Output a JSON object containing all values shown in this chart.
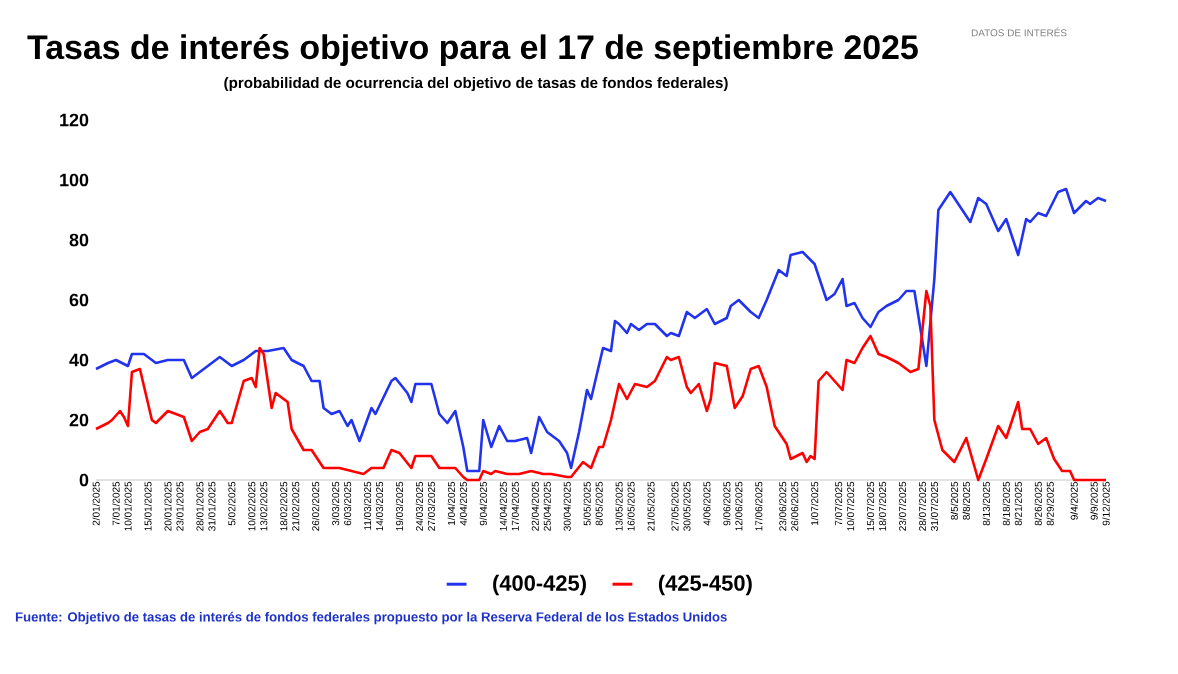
{
  "chart_data": {
    "type": "line",
    "title": "Tasas de interés objetivo para el 17 de septiembre 2025",
    "subtitle": "(probabilidad de ocurrencia del objetivo de tasas de fondos federales)",
    "annotations": [
      "DATOS DE INTERÉS",
      "Fuente: Objetivo de tasas de interés de fondos federales propuesto por la Reserva Federal de los Estados Unidos"
    ],
    "xlim": [
      "2025-01-02",
      "2025-09-12"
    ],
    "xticks": [
      {
        "value": "2025-01-02",
        "label": "2/01/2025"
      },
      {
        "value": "2025-01-07",
        "label": "7/01/2025"
      },
      {
        "value": "2025-01-10",
        "label": "10/01/2025"
      },
      {
        "value": "2025-01-15",
        "label": "15/01/2025"
      },
      {
        "value": "2025-01-20",
        "label": "20/01/2025"
      },
      {
        "value": "2025-01-23",
        "label": "23/01/2025"
      },
      {
        "value": "2025-01-28",
        "label": "28/01/2025"
      },
      {
        "value": "2025-01-31",
        "label": "31/01/2025"
      },
      {
        "value": "2025-02-05",
        "label": "5/02/2025"
      },
      {
        "value": "2025-02-10",
        "label": "10/02/2025"
      },
      {
        "value": "2025-02-13",
        "label": "13/02/2025"
      },
      {
        "value": "2025-02-18",
        "label": "18/02/2025"
      },
      {
        "value": "2025-02-21",
        "label": "21/02/2025"
      },
      {
        "value": "2025-02-26",
        "label": "26/02/2025"
      },
      {
        "value": "2025-03-03",
        "label": "3/03/2025"
      },
      {
        "value": "2025-03-06",
        "label": "6/03/2025"
      },
      {
        "value": "2025-03-11",
        "label": "11/03/2025"
      },
      {
        "value": "2025-03-14",
        "label": "14/03/2025"
      },
      {
        "value": "2025-03-19",
        "label": "19/03/2025"
      },
      {
        "value": "2025-03-24",
        "label": "24/03/2025"
      },
      {
        "value": "2025-03-27",
        "label": "27/03/2025"
      },
      {
        "value": "2025-04-01",
        "label": "1/04/2025"
      },
      {
        "value": "2025-04-04",
        "label": "4/04/2025"
      },
      {
        "value": "2025-04-09",
        "label": "9/04/2025"
      },
      {
        "value": "2025-04-14",
        "label": "14/04/2025"
      },
      {
        "value": "2025-04-17",
        "label": "17/04/2025"
      },
      {
        "value": "2025-04-22",
        "label": "22/04/2025"
      },
      {
        "value": "2025-04-25",
        "label": "25/04/2025"
      },
      {
        "value": "2025-04-30",
        "label": "30/04/2025"
      },
      {
        "value": "2025-05-05",
        "label": "5/05/2025"
      },
      {
        "value": "2025-05-08",
        "label": "8/05/2025"
      },
      {
        "value": "2025-05-13",
        "label": "13/05/2025"
      },
      {
        "value": "2025-05-16",
        "label": "16/05/2025"
      },
      {
        "value": "2025-05-21",
        "label": "21/05/2025"
      },
      {
        "value": "2025-05-27",
        "label": "27/05/2025"
      },
      {
        "value": "2025-05-30",
        "label": "30/05/2025"
      },
      {
        "value": "2025-06-04",
        "label": "4/06/2025"
      },
      {
        "value": "2025-06-09",
        "label": "9/06/2025"
      },
      {
        "value": "2025-06-12",
        "label": "12/06/2025"
      },
      {
        "value": "2025-06-17",
        "label": "17/06/2025"
      },
      {
        "value": "2025-06-23",
        "label": "23/06/2025"
      },
      {
        "value": "2025-06-26",
        "label": "26/06/2025"
      },
      {
        "value": "2025-07-01",
        "label": "1/07/2025"
      },
      {
        "value": "2025-07-07",
        "label": "7/07/2025"
      },
      {
        "value": "2025-07-10",
        "label": "10/07/2025"
      },
      {
        "value": "2025-07-15",
        "label": "15/07/2025"
      },
      {
        "value": "2025-07-18",
        "label": "18/07/2025"
      },
      {
        "value": "2025-07-23",
        "label": "23/07/2025"
      },
      {
        "value": "2025-07-28",
        "label": "28/07/2025"
      },
      {
        "value": "2025-07-31",
        "label": "31/07/2025"
      },
      {
        "value": "2025-08-05",
        "label": "8/5/2025"
      },
      {
        "value": "2025-08-08",
        "label": "8/8/2025"
      },
      {
        "value": "2025-08-13",
        "label": "8/13/2025"
      },
      {
        "value": "2025-08-18",
        "label": "8/18/2025"
      },
      {
        "value": "2025-08-21",
        "label": "8/21/2025"
      },
      {
        "value": "2025-08-26",
        "label": "8/26/2025"
      },
      {
        "value": "2025-08-29",
        "label": "8/29/2025"
      },
      {
        "value": "2025-09-04",
        "label": "9/4/2025"
      },
      {
        "value": "2025-09-09",
        "label": "9/9/2025"
      },
      {
        "value": "2025-09-12",
        "label": "9/12/2025"
      }
    ],
    "ylim": [
      0,
      120
    ],
    "yticks": [
      0,
      20,
      40,
      60,
      80,
      100,
      120
    ],
    "grid": false,
    "legend": "bottom",
    "line_style": "solid",
    "series": [
      {
        "name": "(400-425)",
        "color": "#2233ee",
        "x": [
          "2025-01-02",
          "2025-01-05",
          "2025-01-07",
          "2025-01-10",
          "2025-01-11",
          "2025-01-14",
          "2025-01-17",
          "2025-01-20",
          "2025-01-24",
          "2025-01-26",
          "2025-01-30",
          "2025-02-02",
          "2025-02-05",
          "2025-02-08",
          "2025-02-11",
          "2025-02-14",
          "2025-02-18",
          "2025-02-20",
          "2025-02-23",
          "2025-02-25",
          "2025-02-27",
          "2025-02-28",
          "2025-03-02",
          "2025-03-04",
          "2025-03-06",
          "2025-03-07",
          "2025-03-09",
          "2025-03-12",
          "2025-03-13",
          "2025-03-17",
          "2025-03-18",
          "2025-03-21",
          "2025-03-22",
          "2025-03-23",
          "2025-03-27",
          "2025-03-29",
          "2025-03-31",
          "2025-04-02",
          "2025-04-04",
          "2025-04-05",
          "2025-04-08",
          "2025-04-09",
          "2025-04-11",
          "2025-04-13",
          "2025-04-15",
          "2025-04-17",
          "2025-04-20",
          "2025-04-21",
          "2025-04-23",
          "2025-04-25",
          "2025-04-28",
          "2025-04-30",
          "2025-05-01",
          "2025-05-03",
          "2025-05-05",
          "2025-05-06",
          "2025-05-09",
          "2025-05-11",
          "2025-05-12",
          "2025-05-13",
          "2025-05-15",
          "2025-05-16",
          "2025-05-18",
          "2025-05-20",
          "2025-05-22",
          "2025-05-25",
          "2025-05-26",
          "2025-05-28",
          "2025-05-30",
          "2025-06-01",
          "2025-06-04",
          "2025-06-06",
          "2025-06-09",
          "2025-06-10",
          "2025-06-12",
          "2025-06-15",
          "2025-06-17",
          "2025-06-19",
          "2025-06-22",
          "2025-06-24",
          "2025-06-25",
          "2025-06-28",
          "2025-07-01",
          "2025-07-03",
          "2025-07-04",
          "2025-07-06",
          "2025-07-08",
          "2025-07-09",
          "2025-07-11",
          "2025-07-13",
          "2025-07-15",
          "2025-07-17",
          "2025-07-19",
          "2025-07-22",
          "2025-07-24",
          "2025-07-26",
          "2025-07-29",
          "2025-07-31",
          "2025-08-01",
          "2025-08-04",
          "2025-08-07",
          "2025-08-09",
          "2025-08-11",
          "2025-08-13",
          "2025-08-16",
          "2025-08-18",
          "2025-08-19",
          "2025-08-21",
          "2025-08-23",
          "2025-08-24",
          "2025-08-26",
          "2025-08-28",
          "2025-08-31",
          "2025-09-02",
          "2025-09-04",
          "2025-09-07",
          "2025-09-08",
          "2025-09-10",
          "2025-09-12"
        ],
        "values": [
          37,
          39,
          40,
          38,
          42,
          42,
          39,
          40,
          40,
          34,
          38,
          41,
          38,
          40,
          43,
          43,
          44,
          40,
          38,
          33,
          33,
          24,
          22,
          23,
          18,
          20,
          13,
          24,
          22,
          33,
          34,
          29,
          26,
          32,
          32,
          22,
          19,
          23,
          11,
          3,
          3,
          20,
          11,
          18,
          13,
          13,
          14,
          9,
          21,
          16,
          13,
          9,
          4,
          16,
          30,
          27,
          44,
          43,
          53,
          52,
          49,
          52,
          50,
          52,
          52,
          48,
          49,
          48,
          56,
          54,
          57,
          52,
          54,
          58,
          60,
          56,
          54,
          60,
          70,
          68,
          75,
          76,
          72,
          64,
          60,
          62,
          67,
          58,
          59,
          54,
          51,
          56,
          58,
          60,
          63,
          63,
          38,
          67,
          90,
          96,
          90,
          86,
          94,
          92,
          83,
          87,
          83,
          75,
          87,
          86,
          89,
          88,
          96,
          97,
          89,
          93,
          92,
          94,
          93
        ]
      },
      {
        "name": "(425-450)",
        "color": "#ff0000",
        "x": [
          "2025-01-02",
          "2025-01-05",
          "2025-01-06",
          "2025-01-08",
          "2025-01-09",
          "2025-01-10",
          "2025-01-11",
          "2025-01-13",
          "2025-01-16",
          "2025-01-17",
          "2025-01-20",
          "2025-01-24",
          "2025-01-26",
          "2025-01-28",
          "2025-01-30",
          "2025-02-02",
          "2025-02-04",
          "2025-02-05",
          "2025-02-08",
          "2025-02-10",
          "2025-02-11",
          "2025-02-12",
          "2025-02-13",
          "2025-02-15",
          "2025-02-16",
          "2025-02-19",
          "2025-02-20",
          "2025-02-23",
          "2025-02-25",
          "2025-02-28",
          "2025-03-04",
          "2025-03-07",
          "2025-03-10",
          "2025-03-12",
          "2025-03-15",
          "2025-03-17",
          "2025-03-19",
          "2025-03-22",
          "2025-03-23",
          "2025-03-27",
          "2025-03-29",
          "2025-04-02",
          "2025-04-04",
          "2025-04-05",
          "2025-04-08",
          "2025-04-09",
          "2025-04-11",
          "2025-04-12",
          "2025-04-15",
          "2025-04-18",
          "2025-04-21",
          "2025-04-24",
          "2025-04-26",
          "2025-04-30",
          "2025-05-01",
          "2025-05-04",
          "2025-05-06",
          "2025-05-08",
          "2025-05-09",
          "2025-05-11",
          "2025-05-13",
          "2025-05-15",
          "2025-05-17",
          "2025-05-20",
          "2025-05-22",
          "2025-05-25",
          "2025-05-26",
          "2025-05-28",
          "2025-05-30",
          "2025-05-31",
          "2025-06-02",
          "2025-06-04",
          "2025-06-05",
          "2025-06-06",
          "2025-06-09",
          "2025-06-11",
          "2025-06-13",
          "2025-06-15",
          "2025-06-17",
          "2025-06-19",
          "2025-06-21",
          "2025-06-24",
          "2025-06-25",
          "2025-06-28",
          "2025-06-29",
          "2025-06-30",
          "2025-07-01",
          "2025-07-02",
          "2025-07-04",
          "2025-07-06",
          "2025-07-08",
          "2025-07-09",
          "2025-07-11",
          "2025-07-13",
          "2025-07-15",
          "2025-07-17",
          "2025-07-19",
          "2025-07-22",
          "2025-07-24",
          "2025-07-25",
          "2025-07-27",
          "2025-07-29",
          "2025-07-30",
          "2025-07-31",
          "2025-08-02",
          "2025-08-05",
          "2025-08-08",
          "2025-08-11",
          "2025-08-13",
          "2025-08-16",
          "2025-08-18",
          "2025-08-21",
          "2025-08-22",
          "2025-08-24",
          "2025-08-26",
          "2025-08-28",
          "2025-08-30",
          "2025-09-01",
          "2025-09-03",
          "2025-09-04",
          "2025-09-12"
        ],
        "values": [
          17,
          19,
          20,
          23,
          21,
          18,
          36,
          37,
          20,
          19,
          23,
          21,
          13,
          16,
          17,
          23,
          19,
          19,
          33,
          34,
          31,
          44,
          42,
          24,
          29,
          26,
          17,
          10,
          10,
          4,
          4,
          3,
          2,
          4,
          4,
          10,
          9,
          4,
          8,
          8,
          4,
          4,
          1,
          0,
          0,
          3,
          2,
          3,
          2,
          2,
          3,
          2,
          2,
          1,
          1,
          6,
          4,
          11,
          11,
          20,
          32,
          27,
          32,
          31,
          33,
          41,
          40,
          41,
          31,
          29,
          32,
          23,
          27,
          39,
          38,
          24,
          28,
          37,
          38,
          31,
          18,
          12,
          7,
          9,
          6,
          8,
          7,
          33,
          36,
          33,
          30,
          40,
          39,
          44,
          48,
          42,
          41,
          39,
          37,
          36,
          37,
          63,
          58,
          20,
          10,
          6,
          14,
          0,
          7,
          18,
          14,
          26,
          17,
          17,
          12,
          14,
          7,
          3,
          3,
          0,
          0
        ]
      }
    ]
  }
}
